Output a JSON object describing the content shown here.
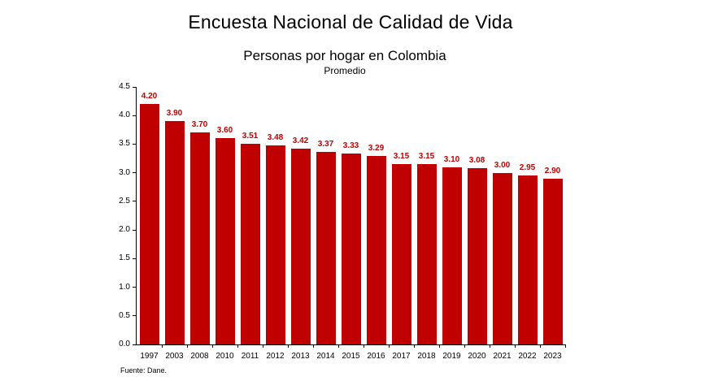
{
  "chart_data": {
    "type": "bar",
    "title": "Encuesta Nacional de Calidad de Vida",
    "subtitle": "Personas por hogar en Colombia",
    "subtitle2": "Promedio",
    "source": "Fuente: Dane.",
    "categories": [
      "1997",
      "2003",
      "2008",
      "2010",
      "2011",
      "2012",
      "2013",
      "2014",
      "2015",
      "2016",
      "2017",
      "2018",
      "2019",
      "2020",
      "2021",
      "2022",
      "2023"
    ],
    "values": [
      4.2,
      3.9,
      3.7,
      3.6,
      3.51,
      3.48,
      3.42,
      3.37,
      3.33,
      3.29,
      3.15,
      3.15,
      3.1,
      3.08,
      3.0,
      2.95,
      2.9
    ],
    "value_labels": [
      "4.20",
      "3.90",
      "3.70",
      "3.60",
      "3.51",
      "3.48",
      "3.42",
      "3.37",
      "3.33",
      "3.29",
      "3.15",
      "3.15",
      "3.10",
      "3.08",
      "3.00",
      "2.95",
      "2.90"
    ],
    "xlabel": "",
    "ylabel": "",
    "ylim": [
      0,
      4.5
    ],
    "ytick_step": 0.5,
    "grid": false,
    "legend": false,
    "bar_color": "#C00000",
    "value_label_color": "#C00000",
    "axis_color": "#000000",
    "text_color": "#000000"
  }
}
